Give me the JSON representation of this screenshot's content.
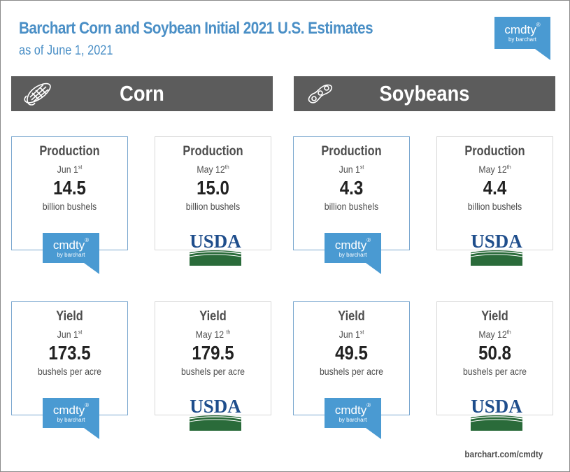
{
  "header": {
    "title": "Barchart Corn and Soybean Initial 2021 U.S. Estimates",
    "subtitle": "as of June 1, 2021"
  },
  "brand": {
    "word": "cmdty",
    "registered": "®",
    "by": "by barchart",
    "color": "#4a9ad2"
  },
  "usda": {
    "text": "USDA",
    "blue": "#1f4e8c",
    "green": "#2a6b3a"
  },
  "sections": {
    "corn": {
      "label": "Corn",
      "icon": "corn-icon"
    },
    "soy": {
      "label": "Soybeans",
      "icon": "soybean-icon"
    }
  },
  "cards": {
    "corn_prod_jun": {
      "title": "Production",
      "date": "Jun 1",
      "sup": "st",
      "value": "14.5",
      "unit": "billion bushels"
    },
    "corn_prod_may": {
      "title": "Production",
      "date": "May 12",
      "sup": "th",
      "value": "15.0",
      "unit": "billion bushels"
    },
    "soy_prod_jun": {
      "title": "Production",
      "date": "Jun 1",
      "sup": "st",
      "value": "4.3",
      "unit": "billion bushels"
    },
    "soy_prod_may": {
      "title": "Production",
      "date": "May 12",
      "sup": "th",
      "value": "4.4",
      "unit": "billion bushels"
    },
    "corn_yield_jun": {
      "title": "Yield",
      "date": "Jun 1",
      "sup": "st",
      "value": "173.5",
      "unit": "bushels per acre"
    },
    "corn_yield_may": {
      "title": "Yield",
      "date": "May 12 ",
      "sup": "th",
      "value": "179.5",
      "unit": "bushels per acre"
    },
    "soy_yield_jun": {
      "title": "Yield",
      "date": "Jun 1",
      "sup": "st",
      "value": "49.5",
      "unit": "bushels per acre"
    },
    "soy_yield_may": {
      "title": "Yield",
      "date": "May 12",
      "sup": "th",
      "value": "50.8",
      "unit": "bushels per acre"
    }
  },
  "footer": {
    "link": "barchart.com/cmdty"
  }
}
